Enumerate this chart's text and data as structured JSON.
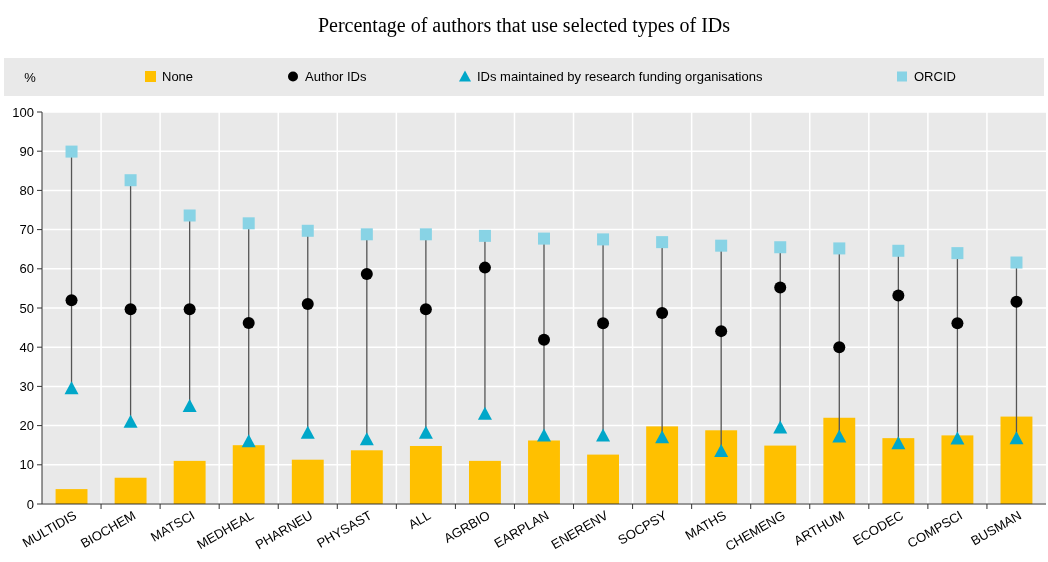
{
  "chart_data": {
    "type": "bar",
    "title": "Percentage of authors that use selected types of IDs",
    "ylabel": "%",
    "categories": [
      "MULTIDIS",
      "BIOCHEM",
      "MATSCI",
      "MEDHEAL",
      "PHARNEU",
      "PHYSAST",
      "ALL",
      "AGRBIO",
      "EARPLAN",
      "ENERENV",
      "SOCPSY",
      "MATHS",
      "CHEMENG",
      "ARTHUM",
      "ECODEC",
      "COMPSCI",
      "BUSMAN"
    ],
    "series": [
      {
        "name": "None",
        "color": "#ffc000",
        "values": [
          3.8,
          6.7,
          11,
          15,
          11.3,
          13.7,
          14.8,
          11,
          16.2,
          12.6,
          19.8,
          18.8,
          14.9,
          22,
          16.8,
          17.5,
          22.3
        ]
      },
      {
        "name": "Author IDs",
        "type": "scatter",
        "marker": "circle",
        "color": "#000000",
        "values": [
          52,
          49.7,
          49.7,
          46.2,
          51,
          58.7,
          49.7,
          60.3,
          41.9,
          46.1,
          48.7,
          44.1,
          55.2,
          40,
          53.2,
          46.1,
          51.6
        ]
      },
      {
        "name": "IDs maintained by research funding organisations",
        "type": "scatter",
        "marker": "triangle",
        "color": "#00a7c9",
        "values": [
          29.5,
          21,
          25,
          16,
          18.2,
          16.5,
          18.2,
          23,
          17.5,
          17.5,
          17,
          13.5,
          19.5,
          17.2,
          15.5,
          16.7,
          16.8
        ]
      },
      {
        "name": "ORCID",
        "type": "scatter",
        "marker": "square",
        "color": "#88d3e5",
        "values": [
          89.9,
          82.6,
          73.6,
          71.6,
          69.7,
          68.8,
          68.8,
          68.4,
          67.7,
          67.5,
          66.8,
          65.9,
          65.5,
          65.2,
          64.6,
          64,
          61.6
        ]
      }
    ],
    "ylim": [
      0,
      100
    ],
    "yticks": [
      0,
      10,
      20,
      30,
      40,
      50,
      60,
      70,
      80,
      90,
      100
    ],
    "grid": true,
    "legend": "top"
  }
}
